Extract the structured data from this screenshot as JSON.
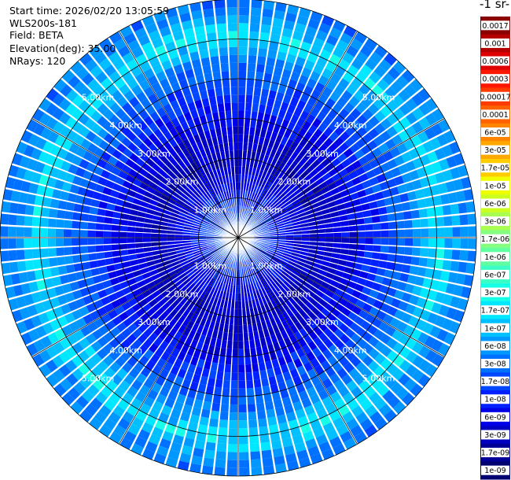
{
  "header": {
    "start_time": "Start time: 2026/02/20 13:05:59",
    "instrument": "WLS200s-181",
    "field": "Field: BETA",
    "elevation": "Elevation(deg): 35.00",
    "nrays": "NRays: 120"
  },
  "colorbar": {
    "unit_label": "-1 sr-",
    "ticks": [
      "0.0017",
      "0.001",
      "0.0006",
      "0.0003",
      "0.00017",
      "0.0001",
      "6e-05",
      "3e-05",
      "1.7e-05",
      "1e-05",
      "6e-06",
      "3e-06",
      "1.7e-06",
      "1e-06",
      "6e-07",
      "3e-07",
      "1.7e-07",
      "1e-07",
      "6e-08",
      "3e-08",
      "1.7e-08",
      "1e-08",
      "6e-09",
      "3e-09",
      "1.7e-09",
      "1e-09"
    ],
    "colors": [
      "#8b0000",
      "#b50000",
      "#df0000",
      "#ff1800",
      "#ff3c00",
      "#ff6000",
      "#ff8400",
      "#ffa800",
      "#ffcc00",
      "#f0ff00",
      "#ccff20",
      "#a8ff50",
      "#84ff80",
      "#60ffa0",
      "#3cffc8",
      "#18ffe8",
      "#00e8ff",
      "#00c0ff",
      "#0098ff",
      "#0070ff",
      "#0048ff",
      "#0020ff",
      "#0000e8",
      "#0000c0",
      "#000098",
      "#000070"
    ]
  },
  "chart_data": {
    "type": "polar_ppi_heatmap",
    "field": "BETA",
    "elevation_deg": 35.0,
    "n_rays": 120,
    "range_unit": "km",
    "range_rings_km": [
      1,
      2,
      3,
      4,
      5
    ],
    "max_range_km": 6.0,
    "ring_labels": [
      "1.00km",
      "2.00km",
      "3.00km",
      "4.00km",
      "5.00km"
    ],
    "radial_profile": [
      {
        "range_km": 0.0,
        "value": 3e-08
      },
      {
        "range_km": 2.0,
        "value": 3e-09
      },
      {
        "range_km": 3.0,
        "value": 6e-09
      },
      {
        "range_km": 3.8,
        "value": 1.7e-08
      },
      {
        "range_km": 4.3,
        "value": 3e-08
      },
      {
        "range_km": 4.8,
        "value": 1e-07
      },
      {
        "range_km": 5.1,
        "value": 1.7e-07
      },
      {
        "range_km": 5.5,
        "value": 6e-08
      },
      {
        "range_km": 6.0,
        "value": 3e-08
      }
    ]
  }
}
